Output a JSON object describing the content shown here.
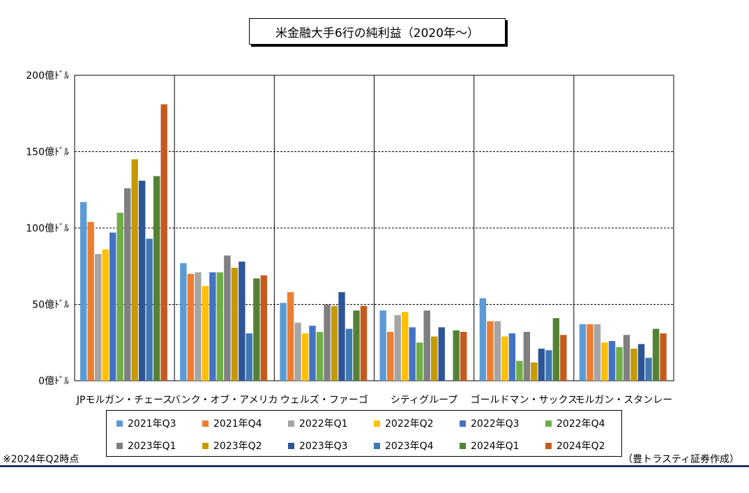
{
  "title": "米金融大手6行の純利益（2020年～）",
  "note_left": "※2024年Q2時点",
  "note_right": "（豊トラスティ証券作成）",
  "chart_data": {
    "type": "bar",
    "title": "米金融大手6行の純利益（2020年～）",
    "ylim": [
      0,
      200
    ],
    "yticks": [
      {
        "value": 0,
        "label": "0億ﾄﾞﾙ"
      },
      {
        "value": 50,
        "label": "50億ﾄﾞﾙ"
      },
      {
        "value": 100,
        "label": "100億ﾄﾞﾙ"
      },
      {
        "value": 150,
        "label": "150億ﾄﾞﾙ"
      },
      {
        "value": 200,
        "label": "200億ﾄﾞﾙ"
      }
    ],
    "grid": "horizontal dashed",
    "legend_position": "bottom",
    "categories": [
      "JPモルガン・チェース",
      "バンク・オブ・アメリカ",
      "ウェルズ・ファーゴ",
      "シティグループ",
      "ゴールドマン・サックス",
      "モルガン・スタンレー"
    ],
    "series": [
      {
        "name": "2021年Q3",
        "color": "#5b9bd5",
        "values": [
          117,
          77,
          51,
          46,
          54,
          37
        ]
      },
      {
        "name": "2021年Q4",
        "color": "#ed7d31",
        "values": [
          104,
          70,
          58,
          32,
          39,
          37
        ]
      },
      {
        "name": "2022年Q1",
        "color": "#a5a5a5",
        "values": [
          83,
          71,
          38,
          43,
          39,
          37
        ]
      },
      {
        "name": "2022年Q2",
        "color": "#ffc000",
        "values": [
          86,
          62,
          31,
          45,
          29,
          25
        ]
      },
      {
        "name": "2022年Q3",
        "color": "#4472c4",
        "values": [
          97,
          71,
          36,
          35,
          31,
          26
        ]
      },
      {
        "name": "2022年Q4",
        "color": "#70ad47",
        "values": [
          110,
          71,
          32,
          25,
          13,
          22
        ]
      },
      {
        "name": "2023年Q1",
        "color": "#7f7f7f",
        "values": [
          126,
          82,
          50,
          46,
          32,
          30
        ]
      },
      {
        "name": "2023年Q2",
        "color": "#c49a00",
        "values": [
          145,
          74,
          49,
          29,
          12,
          21
        ]
      },
      {
        "name": "2023年Q3",
        "color": "#2e5597",
        "values": [
          131,
          78,
          58,
          35,
          21,
          24
        ]
      },
      {
        "name": "2023年Q4",
        "color": "#3f79b3",
        "values": [
          93,
          31,
          34,
          null,
          20,
          15
        ]
      },
      {
        "name": "2024年Q1",
        "color": "#548235",
        "values": [
          134,
          67,
          46,
          33,
          41,
          34
        ]
      },
      {
        "name": "2024年Q2",
        "color": "#c55a1f",
        "values": [
          181,
          69,
          49,
          32,
          30,
          31
        ]
      }
    ]
  }
}
